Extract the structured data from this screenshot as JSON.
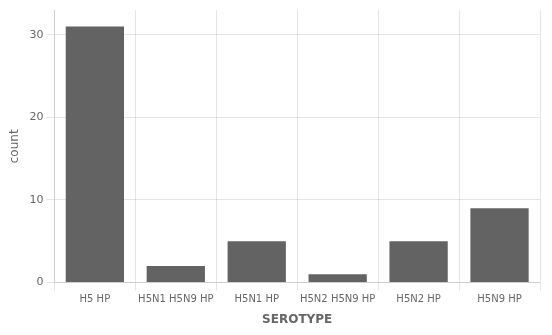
{
  "chart_data": {
    "type": "bar",
    "categories": [
      "H5 HP",
      "H5N1 H5N9 HP",
      "H5N1 HP",
      "H5N2 H5N9 HP",
      "H5N2 HP",
      "H5N9 HP"
    ],
    "values": [
      31,
      2,
      5,
      1,
      5,
      9
    ],
    "color": "#636363",
    "xlabel": "SEROTYPE",
    "ylabel": "count",
    "ylim": [
      0,
      33
    ],
    "yticks": [
      0,
      10,
      20,
      30
    ],
    "grid": true
  }
}
